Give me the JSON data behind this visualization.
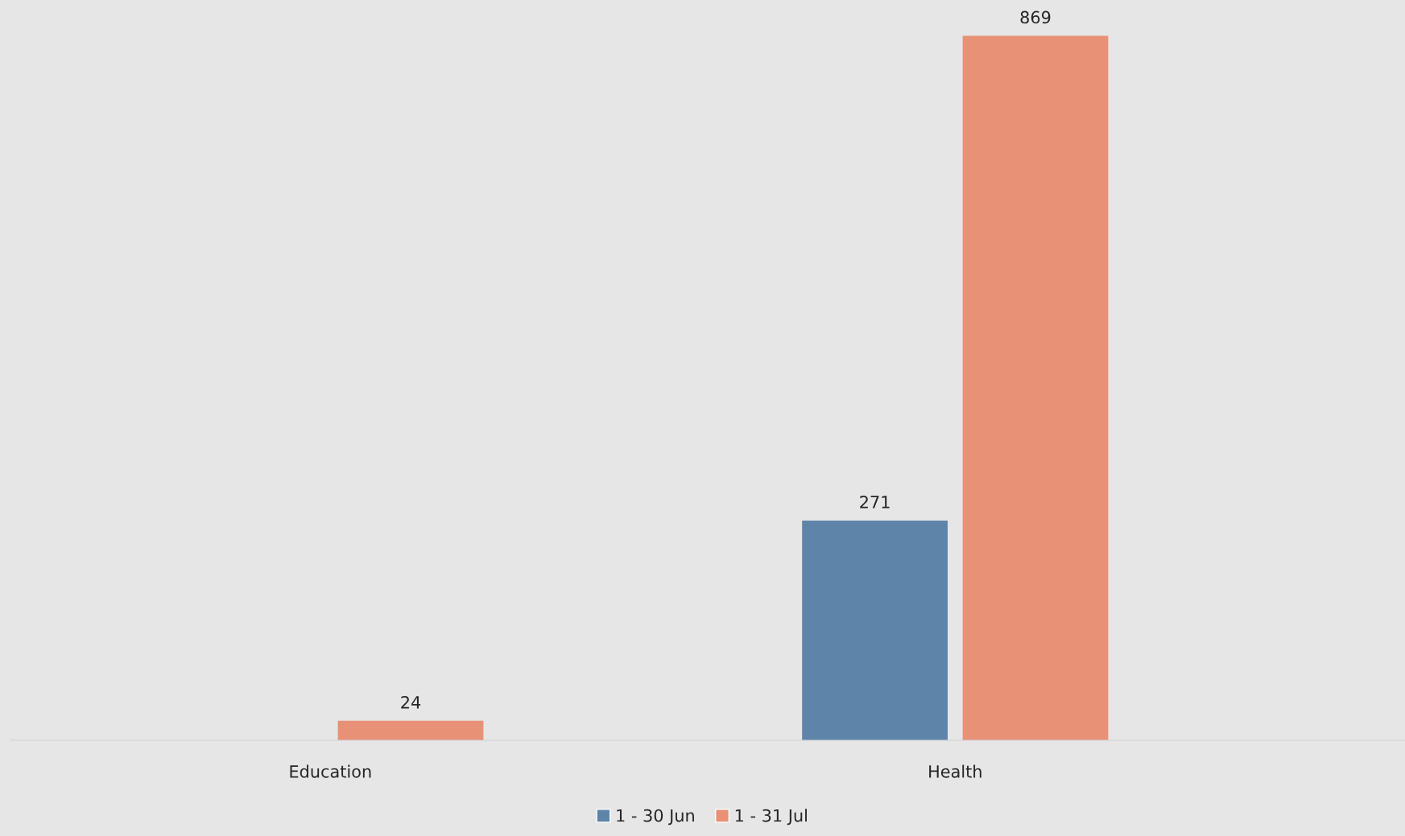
{
  "chart_data": {
    "type": "bar",
    "categories": [
      "Education",
      "Health"
    ],
    "series": [
      {
        "name": "1 - 30 Jun",
        "color": "#5f84aa",
        "values": [
          null,
          271
        ]
      },
      {
        "name": "1 - 31 Jul",
        "color": "#e89177",
        "values": [
          24,
          869
        ]
      }
    ],
    "data_labels": true,
    "legend": "bottom",
    "grid": false
  }
}
